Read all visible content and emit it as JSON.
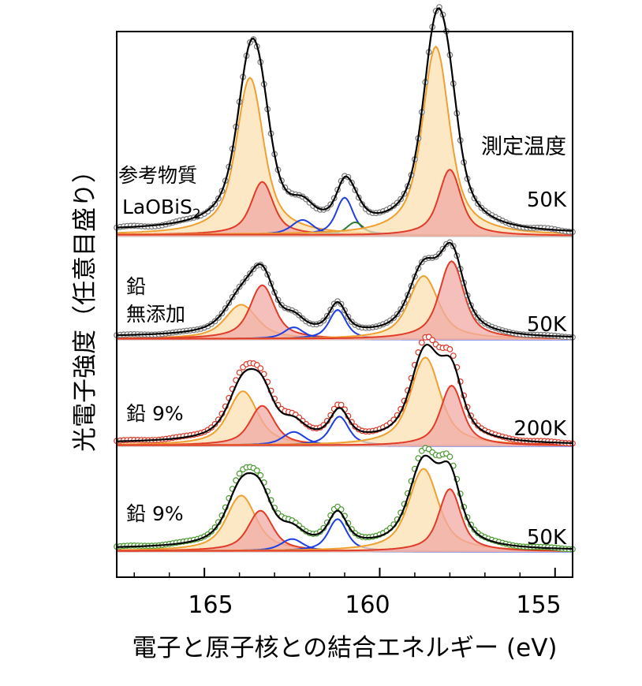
{
  "chart_data": {
    "type": "line",
    "xlabel": "電子と原子核との結合エネルギー (eV)",
    "ylabel": "光電子強度（任意目盛り）",
    "x_reversed": true,
    "xlim": [
      167.5,
      154.5
    ],
    "xticks": [
      "165",
      "160",
      "155"
    ],
    "xtick_values": [
      165,
      160,
      155
    ],
    "corner_label": "測定温度",
    "colors": {
      "fit_total": "#000000",
      "bi_5_2": "#f0a030",
      "bi_5_2_fill": "#fbe0b0",
      "bi_3_2": "#e03c28",
      "bi_3_2_fill": "#f2aaa6",
      "s_component": "#1f3fe0",
      "impurity": "#2e7d32",
      "data_ref": "#777777",
      "data_9pct_200K": "#d93a2a",
      "data_9pct_50K": "#4a9a30"
    },
    "panels": [
      {
        "id": "reference",
        "sample_lines": [
          "参考物質",
          "LaOBiS"
        ],
        "subscript": "2",
        "temperature": "50K",
        "data_color": "ref",
        "peaks": [
          {
            "component": "bi_5_2",
            "center": 163.7,
            "height": 0.83,
            "width": 0.55
          },
          {
            "component": "bi_3_2",
            "center": 163.35,
            "height": 0.28,
            "width": 0.45
          },
          {
            "component": "s_component",
            "center": 162.2,
            "height": 0.08,
            "width": 0.45
          },
          {
            "component": "s_component",
            "center": 161.0,
            "height": 0.2,
            "width": 0.35
          },
          {
            "component": "impurity",
            "center": 160.7,
            "height": 0.07,
            "width": 0.35
          },
          {
            "component": "bi_5_2",
            "center": 158.4,
            "height": 1.0,
            "width": 0.55
          },
          {
            "component": "bi_3_2",
            "center": 158.0,
            "height": 0.35,
            "width": 0.45
          }
        ]
      },
      {
        "id": "pb_free",
        "sample_lines": [
          "鉛",
          "無添加"
        ],
        "temperature": "50K",
        "data_color": "ref",
        "peaks": [
          {
            "component": "bi_5_2",
            "center": 163.95,
            "height": 0.35,
            "width": 0.65
          },
          {
            "component": "bi_3_2",
            "center": 163.35,
            "height": 0.55,
            "width": 0.5
          },
          {
            "component": "s_component",
            "center": 162.45,
            "height": 0.12,
            "width": 0.4
          },
          {
            "component": "s_component",
            "center": 161.2,
            "height": 0.3,
            "width": 0.35
          },
          {
            "component": "bi_5_2",
            "center": 158.75,
            "height": 0.65,
            "width": 0.6
          },
          {
            "component": "bi_3_2",
            "center": 157.95,
            "height": 0.8,
            "width": 0.5
          }
        ]
      },
      {
        "id": "pb9_200K",
        "sample_lines": [
          "鉛 9%"
        ],
        "temperature": "200K",
        "data_color": "red",
        "peaks": [
          {
            "component": "bi_5_2",
            "center": 163.9,
            "height": 0.52,
            "width": 0.6
          },
          {
            "component": "bi_3_2",
            "center": 163.35,
            "height": 0.38,
            "width": 0.5
          },
          {
            "component": "s_component",
            "center": 162.45,
            "height": 0.13,
            "width": 0.45
          },
          {
            "component": "s_component",
            "center": 161.15,
            "height": 0.28,
            "width": 0.38
          },
          {
            "component": "bi_5_2",
            "center": 158.7,
            "height": 0.85,
            "width": 0.6
          },
          {
            "component": "bi_3_2",
            "center": 157.95,
            "height": 0.58,
            "width": 0.45
          }
        ]
      },
      {
        "id": "pb9_50K",
        "sample_lines": [
          "鉛 9%"
        ],
        "temperature": "50K",
        "data_color": "green",
        "peaks": [
          {
            "component": "bi_5_2",
            "center": 163.95,
            "height": 0.55,
            "width": 0.6
          },
          {
            "component": "bi_3_2",
            "center": 163.4,
            "height": 0.4,
            "width": 0.5
          },
          {
            "component": "s_component",
            "center": 162.5,
            "height": 0.12,
            "width": 0.45
          },
          {
            "component": "s_component",
            "center": 161.2,
            "height": 0.32,
            "width": 0.38
          },
          {
            "component": "bi_5_2",
            "center": 158.75,
            "height": 0.82,
            "width": 0.6
          },
          {
            "component": "bi_3_2",
            "center": 158.0,
            "height": 0.62,
            "width": 0.45
          }
        ]
      }
    ]
  }
}
